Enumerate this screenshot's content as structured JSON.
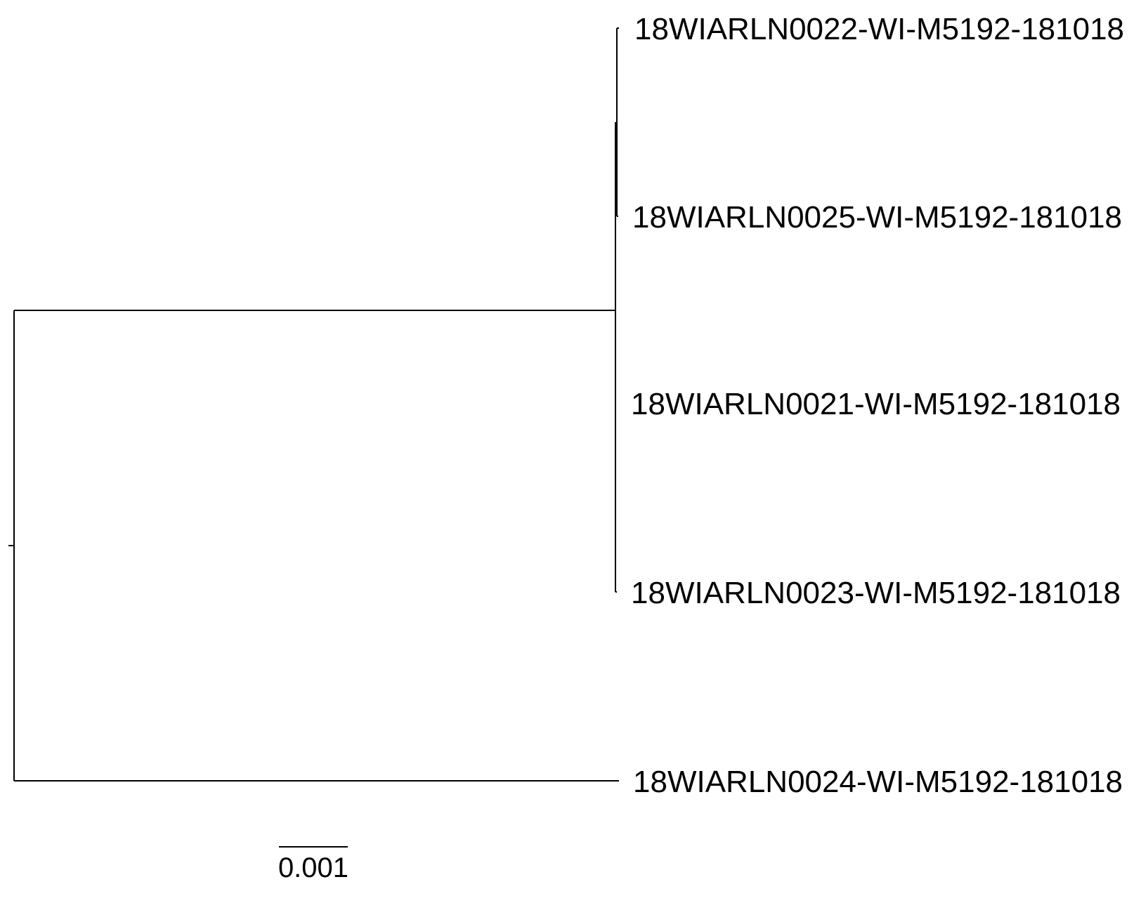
{
  "tips": [
    {
      "id": "t22",
      "label": "18WIARLN0022-WI-M5192-181018"
    },
    {
      "id": "t25",
      "label": "18WIARLN0025-WI-M5192-181018"
    },
    {
      "id": "t21",
      "label": "18WIARLN0021-WI-M5192-181018"
    },
    {
      "id": "t23",
      "label": "18WIARLN0023-WI-M5192-181018"
    },
    {
      "id": "t24",
      "label": "18WIARLN0024-WI-M5192-181018"
    }
  ],
  "scale_bar": {
    "value": 0.001,
    "label": "0.001"
  },
  "colors": {
    "line": "#000000",
    "text": "#000000",
    "background": "#ffffff"
  }
}
